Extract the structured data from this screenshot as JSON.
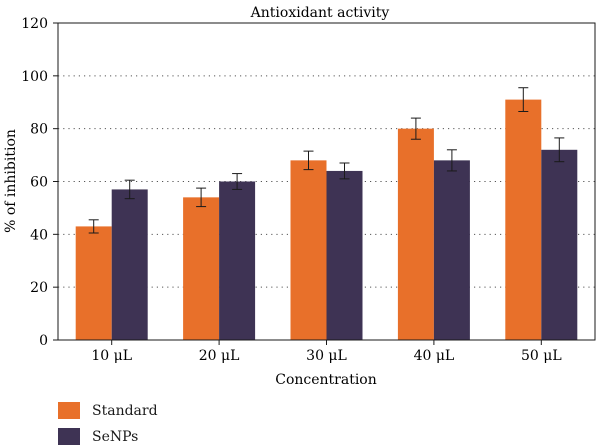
{
  "chart_data": {
    "type": "bar",
    "title": "Antioxidant activity",
    "xlabel": "Concentration",
    "ylabel": "% of inhibition",
    "ylim": [
      0,
      120
    ],
    "yticks": [
      0,
      20,
      40,
      60,
      80,
      100,
      120
    ],
    "grid": "horizontal dotted",
    "categories": [
      "10 μL",
      "20 μL",
      "30 μL",
      "40 μL",
      "50 μL"
    ],
    "series": [
      {
        "name": "Standard",
        "color": "#e8702a",
        "values": [
          43,
          54,
          68,
          80,
          91
        ],
        "errors": [
          2.5,
          3.5,
          3.5,
          4,
          4.5
        ]
      },
      {
        "name": "SeNPs",
        "color": "#3e3354",
        "values": [
          57,
          60,
          64,
          68,
          72
        ],
        "errors": [
          3.5,
          3,
          3,
          4,
          4.5
        ]
      }
    ],
    "legend_position": "bottom-left"
  }
}
